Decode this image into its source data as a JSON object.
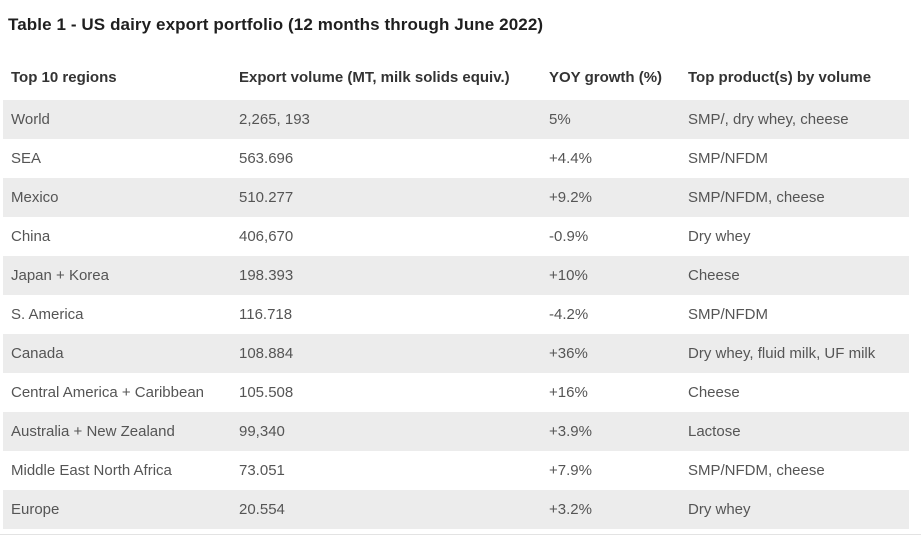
{
  "page": {
    "title": "Table 1 - US dairy export portfolio (12 months through June 2022)"
  },
  "chart_data": {
    "type": "table",
    "title": "Table 1 - US dairy export portfolio (12 months through June 2022)",
    "columns": [
      "Top 10 regions",
      "Export volume (MT, milk solids equiv.)",
      "YOY growth (%)",
      "Top product(s) by volume"
    ],
    "rows": [
      {
        "region": "World",
        "volume": "2,265, 193",
        "yoy": "5%",
        "products": "SMP/, dry whey, cheese"
      },
      {
        "region": "SEA",
        "volume": "563.696",
        "yoy": "+4.4%",
        "products": "SMP/NFDM"
      },
      {
        "region": "Mexico",
        "volume": "510.277",
        "yoy": "+9.2%",
        "products": "SMP/NFDM, cheese"
      },
      {
        "region": "China",
        "volume": "406,670",
        "yoy": "-0.9%",
        "products": "Dry whey"
      },
      {
        "region": "Japan + Korea",
        "volume": "198.393",
        "yoy": "+10%",
        "products": "Cheese"
      },
      {
        "region": "S. America",
        "volume": "116.718",
        "yoy": "-4.2%",
        "products": "SMP/NFDM"
      },
      {
        "region": "Canada",
        "volume": "108.884",
        "yoy": "+36%",
        "products": "Dry whey, fluid milk, UF milk"
      },
      {
        "region": "Central America + Caribbean",
        "volume": "105.508",
        "yoy": "+16%",
        "products": "Cheese"
      },
      {
        "region": "Australia + New Zealand",
        "volume": "99,340",
        "yoy": "+3.9%",
        "products": "Lactose"
      },
      {
        "region": "Middle East North Africa",
        "volume": "73.051",
        "yoy": "+7.9%",
        "products": "SMP/NFDM, cheese"
      },
      {
        "region": "Europe",
        "volume": "20.554",
        "yoy": "+3.2%",
        "products": "Dry whey"
      }
    ],
    "layout": {
      "striped_rows": "odd",
      "stripe_color": "#ececec",
      "grid": false,
      "header_position": "top"
    }
  },
  "colors": {
    "title_text": "#1f1f1f",
    "header_text": "#333333",
    "body_text": "#555555",
    "row_stripe": "#ececec",
    "background": "#ffffff",
    "bottom_rule": "#e3e3e3"
  }
}
